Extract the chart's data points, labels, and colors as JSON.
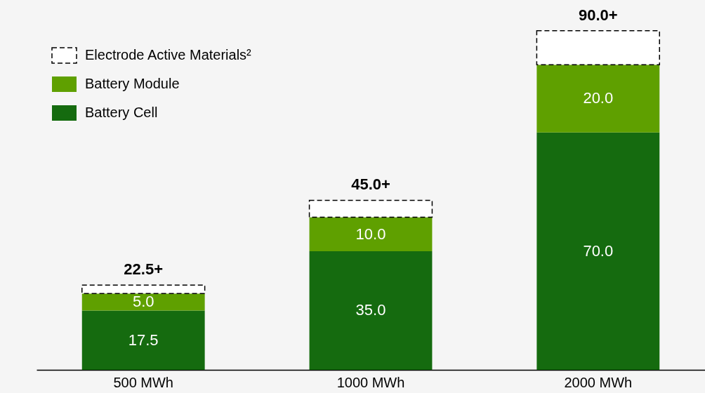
{
  "chart_data": {
    "type": "bar",
    "stacked": true,
    "categories": [
      "500 MWh",
      "1000 MWh",
      "2000 MWh"
    ],
    "series": [
      {
        "name": "Battery Cell",
        "color": "#156b0f",
        "values": [
          17.5,
          35.0,
          70.0
        ],
        "value_labels": [
          "17.5",
          "35.0",
          "70.0"
        ]
      },
      {
        "name": "Battery Module",
        "color": "#5fa000",
        "values": [
          5.0,
          10.0,
          20.0
        ],
        "value_labels": [
          "5.0",
          "10.0",
          "20.0"
        ]
      },
      {
        "name": "Electrode Active Materials²",
        "color": "#ffffff",
        "line_style": "dashed",
        "values": [
          2.5,
          5.0,
          10.0
        ],
        "value_labels": [
          null,
          null,
          null
        ]
      }
    ],
    "totals": [
      "22.5+",
      "45.0+",
      "90.0+"
    ],
    "legend": "top left"
  }
}
